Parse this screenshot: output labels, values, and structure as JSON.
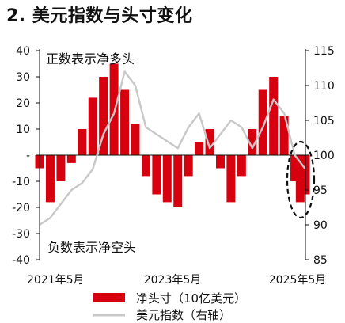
{
  "title": "2. 美元指数与头寸变化",
  "chart_data": {
    "type": "bar",
    "left_axis": {
      "min": -40,
      "max": 40,
      "ticks": [
        "40",
        "30",
        "20",
        "10",
        "-",
        "-10",
        "-20",
        "-30",
        "-40"
      ]
    },
    "right_axis": {
      "min": 85,
      "max": 115,
      "ticks": [
        "115",
        "110",
        "105",
        "100",
        "95",
        "90",
        "85"
      ]
    },
    "x_ticks": [
      "2021年5月",
      "2023年5月",
      "2025年5月"
    ],
    "annotations": {
      "top": "正数表示净多头",
      "bottom": "负数表示净空头"
    },
    "series": [
      {
        "name": "净头寸（10亿美元）",
        "color": "#d7000f",
        "axis": "left",
        "x": [
          2021.333,
          2021.5,
          2021.667,
          2021.833,
          2022.0,
          2022.167,
          2022.333,
          2022.5,
          2022.667,
          2022.833,
          2023.0,
          2023.167,
          2023.333,
          2023.5,
          2023.667,
          2023.833,
          2024.0,
          2024.167,
          2024.333,
          2024.5,
          2024.667,
          2024.833,
          2025.0,
          2025.167,
          2025.333,
          2025.417,
          2025.5
        ],
        "values": [
          -5,
          -18,
          -10,
          -3,
          10,
          22,
          30,
          35,
          25,
          12,
          -8,
          -15,
          -18,
          -20,
          -8,
          5,
          10,
          -5,
          -18,
          -8,
          10,
          25,
          30,
          15,
          -10,
          -18,
          -15
        ]
      },
      {
        "name": "美元指数（右轴）",
        "color": "#c8c8c8",
        "axis": "right",
        "x": [
          2021.333,
          2021.5,
          2021.667,
          2021.833,
          2022.0,
          2022.167,
          2022.333,
          2022.5,
          2022.667,
          2022.833,
          2023.0,
          2023.167,
          2023.333,
          2023.5,
          2023.667,
          2023.833,
          2024.0,
          2024.167,
          2024.333,
          2024.5,
          2024.667,
          2024.833,
          2025.0,
          2025.167,
          2025.333,
          2025.417,
          2025.5
        ],
        "values": [
          90,
          91,
          93,
          95,
          96,
          98,
          103,
          106,
          112,
          110,
          104,
          103,
          102,
          101,
          104,
          106,
          101,
          103,
          105,
          104,
          101,
          104,
          108,
          106,
          100,
          99,
          98
        ]
      }
    ]
  }
}
